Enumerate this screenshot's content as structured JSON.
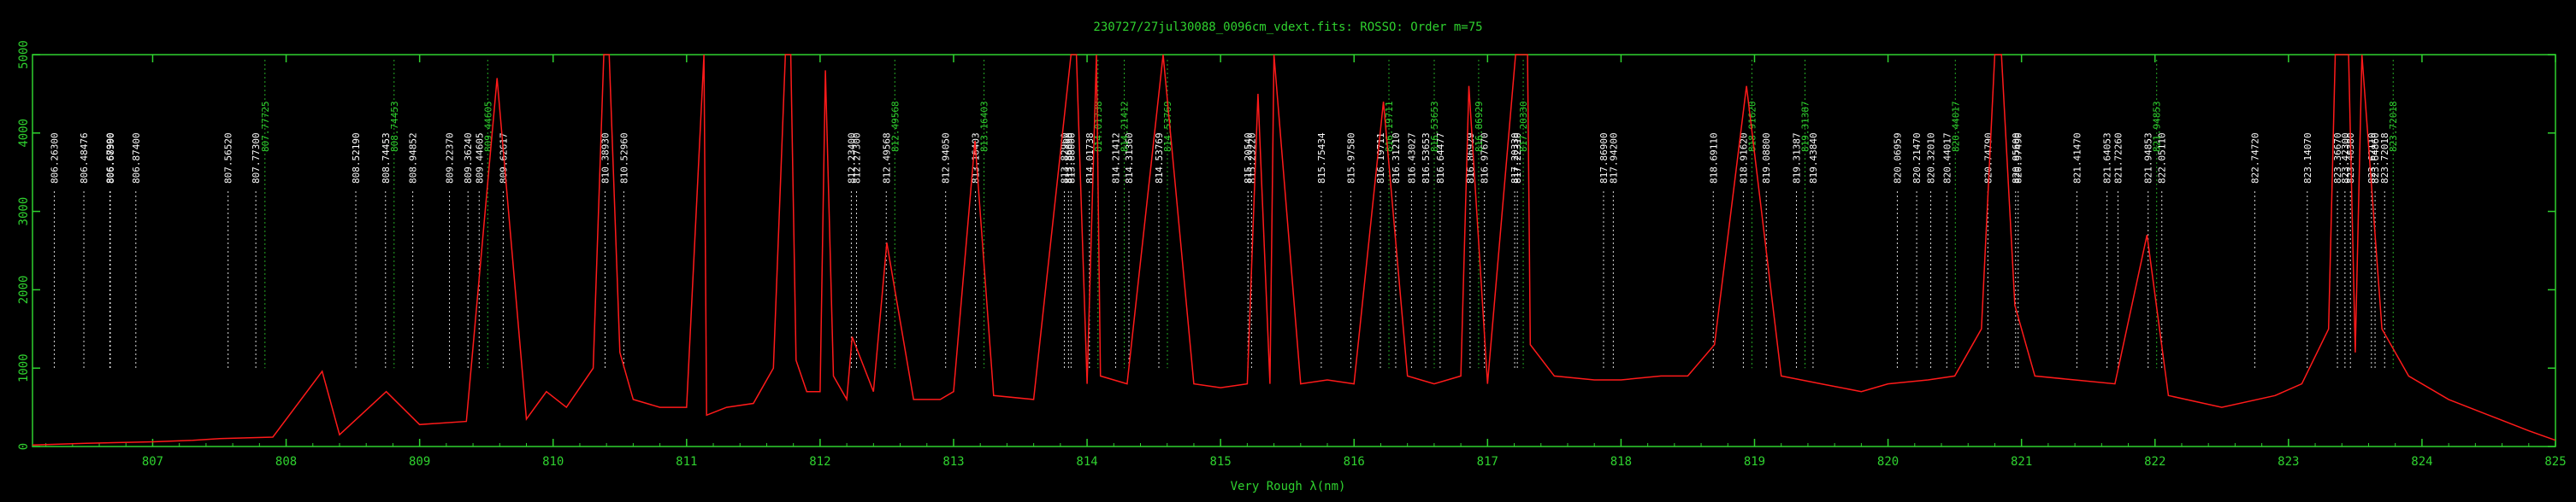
{
  "chart_data": {
    "type": "line",
    "title": "230727/27jul30088_0096cm_vdext.fits: ROSSO: Order m=75",
    "xlabel": "Very Rough λ(nm)",
    "ylabel": "",
    "xlim": [
      806.1,
      825.0
    ],
    "ylim": [
      0,
      5000
    ],
    "x_ticks": [
      807,
      808,
      809,
      810,
      811,
      812,
      813,
      814,
      815,
      816,
      817,
      818,
      819,
      820,
      821,
      822,
      823,
      824,
      825
    ],
    "y_ticks": [
      0,
      1000,
      2000,
      3000,
      4000,
      5000
    ],
    "grid": false,
    "colors": {
      "background": "#000000",
      "frame": "#2fd12f",
      "spectrum": "#ff1a1a",
      "catalog_line": "#ffffff",
      "alt_line": "#2fd12f"
    },
    "series": [
      {
        "x": [
          806.1,
          806.5,
          807.0,
          807.3,
          807.5,
          807.9,
          808.27,
          808.4,
          808.75,
          809.0,
          809.35,
          809.58,
          809.8,
          809.95,
          810.1,
          810.3,
          810.38,
          810.42,
          810.5,
          810.6,
          810.8,
          811.0,
          811.13,
          811.15,
          811.3,
          811.5,
          811.65,
          811.74,
          811.78,
          811.82,
          811.9,
          812.0,
          812.04,
          812.1,
          812.2,
          812.24,
          812.4,
          812.5,
          812.7,
          812.9,
          813.0,
          813.16,
          813.3,
          813.6,
          813.88,
          813.92,
          814.0,
          814.07,
          814.1,
          814.3,
          814.57,
          814.8,
          815.0,
          815.2,
          815.28,
          815.37,
          815.4,
          815.6,
          815.8,
          816.0,
          816.22,
          816.4,
          816.6,
          816.8,
          816.86,
          817.0,
          817.21,
          817.3,
          817.32,
          817.5,
          817.8,
          818.0,
          818.3,
          818.5,
          818.7,
          818.94,
          819.2,
          819.5,
          819.8,
          820.0,
          820.3,
          820.5,
          820.7,
          820.8,
          820.85,
          820.95,
          821.1,
          821.4,
          821.7,
          821.94,
          822.1,
          822.5,
          822.9,
          823.1,
          823.3,
          823.35,
          823.45,
          823.5,
          823.55,
          823.7,
          823.9,
          824.2,
          824.5,
          824.8,
          825.0
        ],
        "y": [
          20,
          40,
          60,
          80,
          100,
          120,
          960,
          150,
          700,
          280,
          320,
          4700,
          350,
          700,
          500,
          1000,
          5000,
          5000,
          1200,
          600,
          500,
          500,
          5000,
          400,
          500,
          550,
          1000,
          5000,
          5000,
          1100,
          700,
          700,
          4800,
          900,
          600,
          1400,
          700,
          2600,
          600,
          600,
          700,
          3900,
          650,
          600,
          5000,
          5000,
          800,
          5000,
          900,
          800,
          5000,
          800,
          750,
          800,
          4500,
          800,
          5000,
          800,
          850,
          800,
          4400,
          900,
          800,
          900,
          4600,
          800,
          5000,
          5000,
          1300,
          900,
          850,
          850,
          900,
          900,
          1300,
          4600,
          900,
          800,
          700,
          800,
          850,
          900,
          1500,
          5000,
          5000,
          1800,
          900,
          850,
          800,
          2700,
          650,
          500,
          650,
          800,
          1500,
          5000,
          5000,
          1200,
          5000,
          1500,
          900,
          600,
          400,
          200,
          80
        ]
      }
    ],
    "catalog_lines": [
      {
        "label": "806.26300",
        "x": 806.263
      },
      {
        "label": "806.48476",
        "x": 806.48476
      },
      {
        "label": "806.67990",
        "x": 806.6799
      },
      {
        "label": "806.68300",
        "x": 806.683
      },
      {
        "label": "806.87400",
        "x": 806.874
      },
      {
        "label": "807.56520",
        "x": 807.5652
      },
      {
        "label": "807.77300",
        "x": 807.773
      },
      {
        "label": "808.52190",
        "x": 808.5219
      },
      {
        "label": "808.74453",
        "x": 808.74453
      },
      {
        "label": "808.94852",
        "x": 808.94852
      },
      {
        "label": "809.22370",
        "x": 809.2237
      },
      {
        "label": "809.36240",
        "x": 809.3624
      },
      {
        "label": "809.44605",
        "x": 809.44605
      },
      {
        "label": "809.62617",
        "x": 809.62617
      },
      {
        "label": "810.38930",
        "x": 810.3893
      },
      {
        "label": "810.52960",
        "x": 810.5296
      },
      {
        "label": "812.23400",
        "x": 812.234
      },
      {
        "label": "812.27300",
        "x": 812.273
      },
      {
        "label": "812.49568",
        "x": 812.49568
      },
      {
        "label": "812.94050",
        "x": 812.9405
      },
      {
        "label": "813.16403",
        "x": 813.16403
      },
      {
        "label": "813.82960",
        "x": 813.8296
      },
      {
        "label": "813.86090",
        "x": 813.8609
      },
      {
        "label": "813.88000",
        "x": 813.88
      },
      {
        "label": "814.01738",
        "x": 814.01738
      },
      {
        "label": "814.21412",
        "x": 814.21412
      },
      {
        "label": "814.31360",
        "x": 814.3136
      },
      {
        "label": "814.53769",
        "x": 814.53769
      },
      {
        "label": "815.20540",
        "x": 815.2054
      },
      {
        "label": "815.23220",
        "x": 815.2322
      },
      {
        "label": "815.75434",
        "x": 815.75434
      },
      {
        "label": "815.97580",
        "x": 815.9758
      },
      {
        "label": "816.19711",
        "x": 816.19711
      },
      {
        "label": "816.31210",
        "x": 816.3121
      },
      {
        "label": "816.43027",
        "x": 816.43027
      },
      {
        "label": "816.53653",
        "x": 816.53653
      },
      {
        "label": "816.64477",
        "x": 816.64477
      },
      {
        "label": "816.86929",
        "x": 816.86929
      },
      {
        "label": "816.97670",
        "x": 816.9767
      },
      {
        "label": "817.20330",
        "x": 817.2033
      },
      {
        "label": "817.22310",
        "x": 817.2231
      },
      {
        "label": "817.86900",
        "x": 817.869
      },
      {
        "label": "817.94200",
        "x": 817.942
      },
      {
        "label": "818.69110",
        "x": 818.6911
      },
      {
        "label": "818.91620",
        "x": 818.9162
      },
      {
        "label": "819.08800",
        "x": 819.088
      },
      {
        "label": "819.31387",
        "x": 819.31387
      },
      {
        "label": "819.43840",
        "x": 819.4384
      },
      {
        "label": "820.06959",
        "x": 820.06959
      },
      {
        "label": "820.21470",
        "x": 820.2147
      },
      {
        "label": "820.32010",
        "x": 820.3201
      },
      {
        "label": "820.44017",
        "x": 820.44017
      },
      {
        "label": "820.74790",
        "x": 820.7479
      },
      {
        "label": "820.95600",
        "x": 820.956
      },
      {
        "label": "820.97490",
        "x": 820.9749
      },
      {
        "label": "821.41470",
        "x": 821.4147
      },
      {
        "label": "821.64053",
        "x": 821.64053
      },
      {
        "label": "821.72260",
        "x": 821.7226
      },
      {
        "label": "821.94853",
        "x": 821.94853
      },
      {
        "label": "822.05110",
        "x": 822.0511
      },
      {
        "label": "822.74720",
        "x": 822.7472
      },
      {
        "label": "823.14070",
        "x": 823.1407
      },
      {
        "label": "823.36670",
        "x": 823.3667
      },
      {
        "label": "823.42300",
        "x": 823.423
      },
      {
        "label": "823.46380",
        "x": 823.4638
      },
      {
        "label": "823.62110",
        "x": 823.6211
      },
      {
        "label": "823.64860",
        "x": 823.6486
      },
      {
        "label": "823.72018",
        "x": 823.72018
      }
    ],
    "alt_lines": [
      {
        "label": "807.77725",
        "x": 807.77725
      },
      {
        "label": "808.74453",
        "x": 808.74453
      },
      {
        "label": "809.44605",
        "x": 809.44605
      },
      {
        "label": "813.16403",
        "x": 813.16403
      },
      {
        "label": "812.49568",
        "x": 812.49568
      },
      {
        "label": "814.01738",
        "x": 814.01738
      },
      {
        "label": "814.21412",
        "x": 814.21412
      },
      {
        "label": "814.53769",
        "x": 814.53769
      },
      {
        "label": "816.19711",
        "x": 816.19711
      },
      {
        "label": "816.53653",
        "x": 816.53653
      },
      {
        "label": "816.86929",
        "x": 816.86929
      },
      {
        "label": "817.20330",
        "x": 817.2033
      },
      {
        "label": "818.91620",
        "x": 818.9162
      },
      {
        "label": "819.31387",
        "x": 819.31387
      },
      {
        "label": "820.44017",
        "x": 820.44017
      },
      {
        "label": "821.94853",
        "x": 821.94853
      },
      {
        "label": "823.72018",
        "x": 823.72018
      }
    ]
  }
}
